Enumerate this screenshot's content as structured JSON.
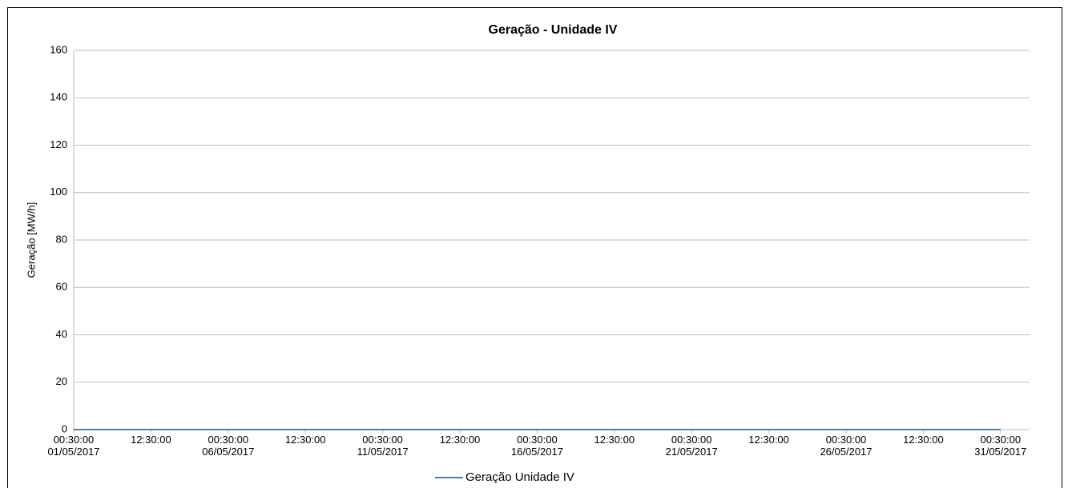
{
  "chart_data": {
    "type": "line",
    "title": "Geração - Unidade IV",
    "y_label": "Geração [MW/h]",
    "categories": [
      "00:30:00\n01/05/2017",
      "12:30:00",
      "00:30:00\n06/05/2017",
      "12:30:00",
      "00:30:00\n11/05/2017",
      "12:30:00",
      "00:30:00\n16/05/2017",
      "12:30:00",
      "00:30:00\n21/05/2017",
      "12:30:00",
      "00:30:00\n26/05/2017",
      "12:30:00",
      "00:30:00\n31/05/2017"
    ],
    "series": [
      {
        "name": "Geração Unidade IV",
        "color": "#4a7ebb",
        "values": [
          0,
          0,
          0,
          0,
          0,
          0,
          0,
          0,
          0,
          0,
          0,
          0,
          0
        ]
      }
    ],
    "ylim": [
      0,
      160
    ],
    "yticks": [
      0,
      20,
      40,
      60,
      80,
      100,
      120,
      140,
      160
    ],
    "grid": true,
    "legend": "bottom"
  }
}
